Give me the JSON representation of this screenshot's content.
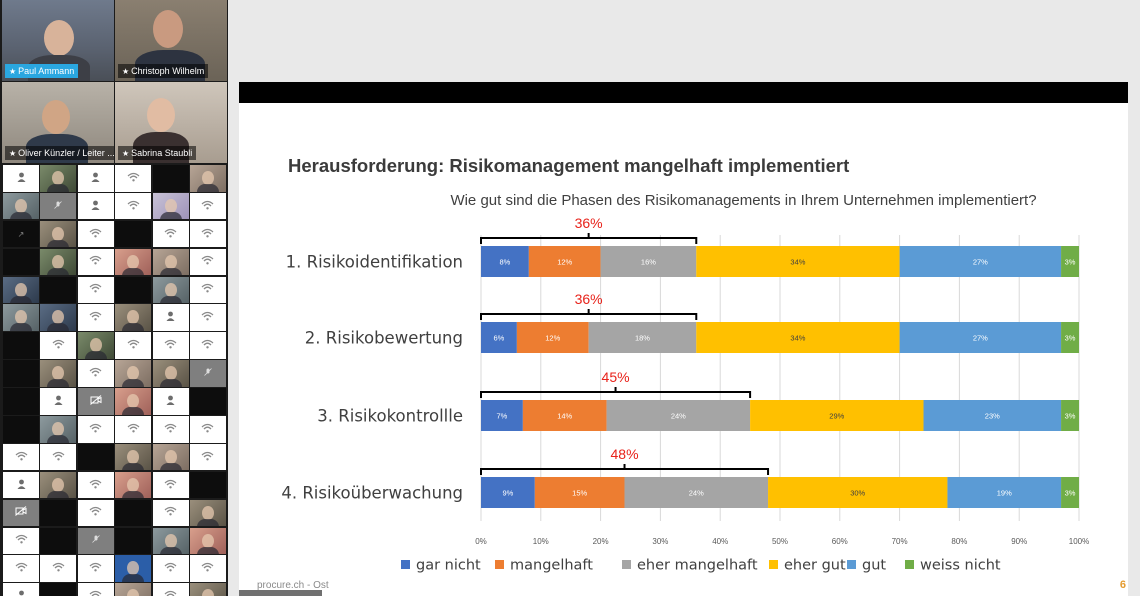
{
  "meeting": {
    "participants_main": [
      {
        "name": "Paul Ammann",
        "pinned": true,
        "selected": true
      },
      {
        "name": "Christoph Wilhelm",
        "pinned": true,
        "selected": false
      },
      {
        "name": "Oliver Künzler / Leiter ...",
        "pinned": true,
        "selected": false
      },
      {
        "name": "Sabrina Staubli",
        "pinned": true,
        "selected": false
      }
    ],
    "grid_tiles": [
      "w:user-icon",
      "v2:video",
      "w:user-icon",
      "w:wifi-icon",
      "d:blank",
      "v3:video",
      "v7:video",
      "g:mic-off",
      "w:user-icon",
      "w:wifi-icon",
      "v5:video",
      "w:wifi-icon",
      "d:screen",
      "v1:video",
      "w:wifi-icon",
      "d:blank",
      "w:wifi-icon",
      "w:wifi-icon",
      "d:blank",
      "v2:video",
      "w:wifi-icon",
      "v6:video",
      "v3:video",
      "w:wifi-icon",
      "v4:video",
      "d:blank",
      "w:wifi-icon",
      "d:blank",
      "v7:video",
      "w:wifi-icon",
      "v7:video",
      "v4:video",
      "w:wifi-icon",
      "v1:video",
      "w:user-icon",
      "w:wifi-icon",
      "d:blank",
      "w:wifi-icon",
      "v2:video",
      "w:wifi-icon",
      "w:wifi-icon",
      "w:wifi-icon",
      "d:blank",
      "v1:video",
      "w:wifi-icon",
      "v3:video",
      "v1:video",
      "g:mic-off",
      "d:blank",
      "w:user-icon",
      "g:camera-off",
      "v6:video",
      "w:user-icon",
      "d:blank",
      "d:blank",
      "v7:video",
      "w:wifi-icon",
      "w:wifi-icon",
      "w:wifi-icon",
      "w:wifi-icon",
      "w:wifi-icon",
      "w:wifi-icon",
      "d:blank",
      "v1:video",
      "v3:video",
      "w:wifi-icon",
      "w:user-icon",
      "v1:video",
      "w:wifi-icon",
      "v6:video",
      "w:wifi-icon",
      "d:blank",
      "g:camera-off",
      "d:blank",
      "w:wifi-icon",
      "d:blank",
      "w:wifi-icon",
      "v1:video",
      "w:wifi-icon",
      "d:blank",
      "g:mic-off",
      "d:blank",
      "v7:video",
      "v6:video",
      "w:wifi-icon",
      "w:wifi-icon",
      "w:wifi-icon",
      "v8:video",
      "w:wifi-icon",
      "w:wifi-icon",
      "w:user-icon",
      "d:blank",
      "w:wifi-icon",
      "v3:video",
      "w:wifi-icon",
      "v1:video"
    ]
  },
  "slide": {
    "title": "Herausforderung: Risikomanagement mangelhaft implementiert",
    "footer": "procure.ch - Ost",
    "page_number": "6"
  },
  "chart_data": {
    "type": "bar",
    "orientation": "horizontal-stacked-100",
    "title": "Wie gut sind die Phasen des Risikomanagements in Ihrem Unternehmen implementiert?",
    "categories": [
      "1. Risikoidentifikation",
      "2. Risikobewertung",
      "3. Risikokontrollle",
      "4. Risikoüberwachung"
    ],
    "series": [
      {
        "name": "gar nicht",
        "color": "#4472c4",
        "values": [
          8,
          6,
          7,
          9
        ]
      },
      {
        "name": "mangelhaft",
        "color": "#ed7d31",
        "values": [
          12,
          12,
          14,
          15
        ]
      },
      {
        "name": "eher mangelhaft",
        "color": "#a5a5a5",
        "values": [
          16,
          18,
          24,
          24
        ]
      },
      {
        "name": "eher gut",
        "color": "#ffc000",
        "values": [
          34,
          34,
          29,
          30
        ]
      },
      {
        "name": "gut",
        "color": "#5b9bd5",
        "values": [
          27,
          27,
          23,
          19
        ]
      },
      {
        "name": "weiss nicht",
        "color": "#70ad47",
        "values": [
          3,
          3,
          3,
          3
        ]
      }
    ],
    "bracket_totals": [
      "36%",
      "36%",
      "45%",
      "48%"
    ],
    "bracket_color": "#e8221a",
    "x_ticks": [
      "0%",
      "10%",
      "20%",
      "30%",
      "40%",
      "50%",
      "60%",
      "70%",
      "80%",
      "90%",
      "100%"
    ],
    "xlim": [
      0,
      100
    ],
    "grid": true,
    "legend": "bottom"
  }
}
